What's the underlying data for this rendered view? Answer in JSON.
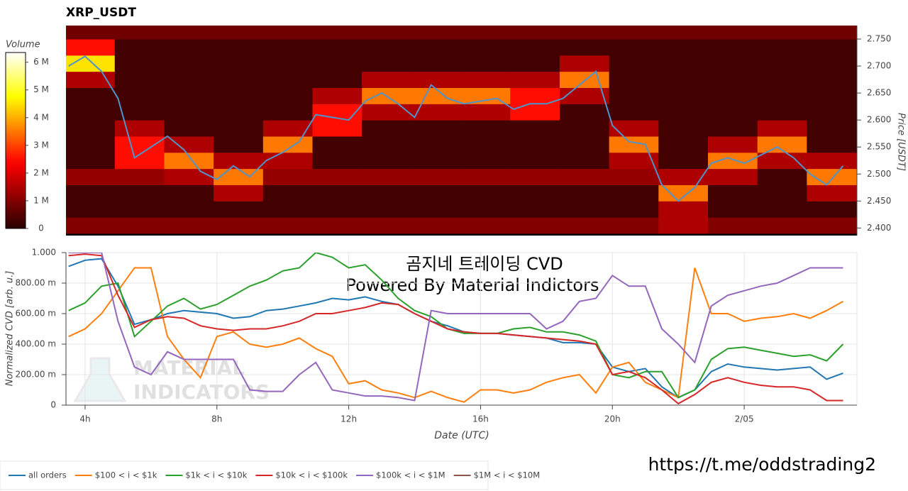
{
  "chart_data": [
    {
      "type": "heatmap",
      "title": "XRP_USDT",
      "y_label": "Price [USDT]",
      "xlim": [
        3.42,
        27.42
      ],
      "ylim": [
        2.386,
        2.775
      ],
      "yticks": [
        {
          "value": 2.4,
          "label": "2.400"
        },
        {
          "value": 2.45,
          "label": "2.450"
        },
        {
          "value": 2.5,
          "label": "2.500"
        },
        {
          "value": 2.55,
          "label": "2.550"
        },
        {
          "value": 2.6,
          "label": "2.600"
        },
        {
          "value": 2.65,
          "label": "2.650"
        },
        {
          "value": 2.7,
          "label": "2.700"
        },
        {
          "value": 2.75,
          "label": "2.750"
        }
      ],
      "colorbar": {
        "label": "Volume",
        "colormap": "hot",
        "lim": [
          0,
          6350000
        ],
        "ticks": [
          0,
          {
            "value": 1000000,
            "label": "1 M"
          },
          {
            "value": 2000000,
            "label": "2 M"
          },
          {
            "value": 3000000,
            "label": "3 M"
          },
          {
            "value": 4000000,
            "label": "4 M"
          },
          {
            "value": 5000000,
            "label": "5 M"
          },
          {
            "value": 6000000,
            "label": "6 M"
          }
        ]
      },
      "time_bins": [
        3.4,
        4.9,
        6.4,
        7.9,
        9.4,
        10.9,
        12.4,
        13.9,
        15.4,
        16.9,
        18.4,
        19.9,
        21.4,
        22.9,
        24.4,
        25.9,
        27.4
      ],
      "price_bins": [
        2.39,
        2.42,
        2.45,
        2.48,
        2.51,
        2.54,
        2.57,
        2.6,
        2.63,
        2.66,
        2.69,
        2.72,
        2.75,
        2.78
      ],
      "volumes": [
        [
          1000000,
          1000000,
          1000000,
          1000000,
          1000000,
          1000000,
          1000000,
          1000000,
          1000000,
          1000000,
          1000000,
          1000000,
          1500000,
          1000000,
          1000000,
          1000000
        ],
        [
          300000,
          300000,
          300000,
          300000,
          300000,
          300000,
          300000,
          300000,
          300000,
          300000,
          300000,
          300000,
          1500000,
          300000,
          300000,
          300000
        ],
        [
          300000,
          300000,
          300000,
          1500000,
          300000,
          300000,
          300000,
          300000,
          300000,
          300000,
          300000,
          300000,
          3500000,
          300000,
          300000,
          1500000
        ],
        [
          1200000,
          1200000,
          1500000,
          3500000,
          1200000,
          1200000,
          1200000,
          1200000,
          1200000,
          1200000,
          1200000,
          1200000,
          1500000,
          1500000,
          300000,
          3500000
        ],
        [
          300000,
          2500000,
          3500000,
          1500000,
          1500000,
          300000,
          300000,
          300000,
          300000,
          300000,
          300000,
          1500000,
          300000,
          3500000,
          1500000,
          1500000
        ],
        [
          300000,
          2500000,
          1500000,
          300000,
          3500000,
          300000,
          300000,
          300000,
          300000,
          300000,
          300000,
          3500000,
          300000,
          1500000,
          3500000,
          300000
        ],
        [
          300000,
          1500000,
          300000,
          300000,
          1500000,
          2500000,
          300000,
          300000,
          300000,
          300000,
          300000,
          1500000,
          300000,
          300000,
          1500000,
          300000
        ],
        [
          300000,
          300000,
          300000,
          300000,
          300000,
          2500000,
          1500000,
          1500000,
          1500000,
          2500000,
          300000,
          300000,
          300000,
          300000,
          300000,
          300000
        ],
        [
          300000,
          300000,
          300000,
          300000,
          300000,
          1500000,
          3500000,
          3500000,
          3500000,
          2500000,
          1500000,
          300000,
          300000,
          300000,
          300000,
          300000
        ],
        [
          1500000,
          300000,
          300000,
          300000,
          300000,
          300000,
          1500000,
          1500000,
          1500000,
          1500000,
          3500000,
          300000,
          300000,
          300000,
          300000,
          300000
        ],
        [
          4500000,
          300000,
          300000,
          300000,
          300000,
          300000,
          300000,
          300000,
          300000,
          300000,
          1500000,
          300000,
          300000,
          300000,
          300000,
          300000
        ],
        [
          2500000,
          300000,
          300000,
          300000,
          300000,
          300000,
          300000,
          300000,
          300000,
          300000,
          300000,
          300000,
          300000,
          300000,
          300000,
          300000
        ],
        [
          800000,
          800000,
          800000,
          800000,
          800000,
          800000,
          800000,
          800000,
          800000,
          800000,
          800000,
          800000,
          800000,
          800000,
          800000,
          800000
        ]
      ],
      "x": [
        3.5,
        4,
        4.5,
        5,
        5.5,
        6,
        6.5,
        7,
        7.5,
        8,
        8.5,
        9,
        9.5,
        10,
        10.5,
        11,
        11.5,
        12,
        12.5,
        13,
        13.5,
        14,
        14.5,
        15,
        15.5,
        16,
        16.5,
        17,
        17.5,
        18,
        18.5,
        19,
        19.5,
        20,
        20.5,
        21,
        21.5,
        22,
        22.5,
        23,
        23.5,
        24,
        24.5,
        25,
        25.5,
        26,
        26.5,
        27
      ],
      "series": [
        {
          "color": "#4f93c9",
          "values": [
            2.7,
            2.718,
            2.69,
            2.64,
            2.53,
            2.55,
            2.57,
            2.545,
            2.505,
            2.49,
            2.515,
            2.495,
            2.525,
            2.54,
            2.56,
            2.61,
            2.605,
            2.6,
            2.635,
            2.65,
            2.63,
            2.605,
            2.665,
            2.64,
            2.63,
            2.635,
            2.64,
            2.62,
            2.63,
            2.63,
            2.64,
            2.665,
            2.69,
            2.59,
            2.56,
            2.555,
            2.48,
            2.45,
            2.475,
            2.52,
            2.53,
            2.52,
            2.535,
            2.55,
            2.53,
            2.5,
            2.48,
            2.515
          ]
        }
      ]
    },
    {
      "type": "line",
      "xlabel": "Date (UTC)",
      "ylabel": "Normalized CVD [arb. u.]",
      "grid": true,
      "legend": "bottom-left",
      "annotations": [
        "곰지네 트레이딩 CVD",
        "Powered By Material Indictors"
      ],
      "watermark": [
        "MATERIAL",
        "INDICATORS"
      ],
      "xlim": [
        3.42,
        27.42
      ],
      "xticks": [
        {
          "value": 4,
          "label": "4h"
        },
        {
          "value": 8,
          "label": "8h"
        },
        {
          "value": 12,
          "label": "12h"
        },
        {
          "value": 16,
          "label": "16h"
        },
        {
          "value": 20,
          "label": "20h"
        },
        {
          "value": 24,
          "label": "2/05"
        }
      ],
      "ylim": [
        0,
        1
      ],
      "yticks": [
        0,
        {
          "value": 0.2,
          "label": "200.00 m"
        },
        {
          "value": 0.4,
          "label": "400.00 m"
        },
        {
          "value": 0.6,
          "label": "600.00 m"
        },
        {
          "value": 0.8,
          "label": "800.00 m"
        },
        {
          "value": 1,
          "label": "1.000"
        }
      ],
      "x": [
        3.5,
        4,
        4.5,
        5,
        5.5,
        6,
        6.5,
        7,
        7.5,
        8,
        8.5,
        9,
        9.5,
        10,
        10.5,
        11,
        11.5,
        12,
        12.5,
        13,
        13.5,
        14,
        14.5,
        15,
        15.5,
        16,
        16.5,
        17,
        17.5,
        18,
        18.5,
        19,
        19.5,
        20,
        20.5,
        21,
        21.5,
        22,
        22.5,
        23,
        23.5,
        24,
        24.5,
        25,
        25.5,
        26,
        26.5,
        27
      ],
      "series": [
        {
          "name": "all orders",
          "color": "#1f77b4",
          "values": [
            0.91,
            0.95,
            0.96,
            0.78,
            0.53,
            0.56,
            0.6,
            0.62,
            0.61,
            0.6,
            0.57,
            0.58,
            0.62,
            0.63,
            0.65,
            0.67,
            0.7,
            0.69,
            0.71,
            0.68,
            0.66,
            0.6,
            0.55,
            0.52,
            0.48,
            0.47,
            0.47,
            0.46,
            0.45,
            0.44,
            0.41,
            0.41,
            0.4,
            0.25,
            0.22,
            0.24,
            0.12,
            0.05,
            0.1,
            0.22,
            0.27,
            0.25,
            0.24,
            0.23,
            0.24,
            0.25,
            0.17,
            0.21
          ]
        },
        {
          "name": "$100 < i < $1k",
          "color": "#ff7f0e",
          "values": [
            0.45,
            0.5,
            0.6,
            0.75,
            0.9,
            0.9,
            0.45,
            0.3,
            0.18,
            0.45,
            0.48,
            0.4,
            0.38,
            0.4,
            0.44,
            0.37,
            0.32,
            0.14,
            0.16,
            0.1,
            0.08,
            0.05,
            0.09,
            0.05,
            0.02,
            0.1,
            0.1,
            0.08,
            0.1,
            0.15,
            0.18,
            0.2,
            0.08,
            0.25,
            0.28,
            0.15,
            0.1,
            0.05,
            0.9,
            0.6,
            0.6,
            0.55,
            0.57,
            0.58,
            0.6,
            0.57,
            0.62,
            0.68
          ]
        },
        {
          "name": "$1k < i < $10k",
          "color": "#2ca02c",
          "values": [
            0.62,
            0.67,
            0.78,
            0.8,
            0.45,
            0.55,
            0.65,
            0.7,
            0.63,
            0.66,
            0.72,
            0.78,
            0.82,
            0.88,
            0.9,
            1.0,
            0.97,
            0.9,
            0.92,
            0.82,
            0.7,
            0.62,
            0.58,
            0.5,
            0.47,
            0.47,
            0.47,
            0.5,
            0.51,
            0.48,
            0.48,
            0.46,
            0.42,
            0.2,
            0.18,
            0.22,
            0.22,
            0.05,
            0.1,
            0.3,
            0.37,
            0.38,
            0.36,
            0.34,
            0.32,
            0.33,
            0.29,
            0.4
          ]
        },
        {
          "name": "$10k < i < $100k",
          "color": "#d62728",
          "values": [
            0.98,
            0.99,
            0.98,
            0.72,
            0.51,
            0.56,
            0.58,
            0.57,
            0.52,
            0.5,
            0.49,
            0.5,
            0.5,
            0.52,
            0.55,
            0.6,
            0.6,
            0.62,
            0.64,
            0.67,
            0.66,
            0.6,
            0.55,
            0.5,
            0.48,
            0.47,
            0.47,
            0.46,
            0.45,
            0.44,
            0.43,
            0.42,
            0.4,
            0.2,
            0.22,
            0.18,
            0.1,
            0.01,
            0.07,
            0.15,
            0.18,
            0.15,
            0.13,
            0.12,
            0.12,
            0.1,
            0.03,
            0.03
          ]
        },
        {
          "name": "$100k < i < $1M",
          "color": "#9467bd",
          "values": [
            1.0,
            1.0,
            1.0,
            0.55,
            0.25,
            0.2,
            0.35,
            0.3,
            0.3,
            0.3,
            0.3,
            0.1,
            0.09,
            0.09,
            0.2,
            0.28,
            0.1,
            0.08,
            0.06,
            0.06,
            0.05,
            0.03,
            0.62,
            0.6,
            0.6,
            0.6,
            0.6,
            0.6,
            0.6,
            0.5,
            0.55,
            0.68,
            0.7,
            0.85,
            0.78,
            0.78,
            0.5,
            0.4,
            0.28,
            0.65,
            0.72,
            0.75,
            0.78,
            0.8,
            0.85,
            0.9,
            0.9,
            0.9
          ]
        },
        {
          "name": "$1M < i < $10M",
          "color": "#8c564b",
          "values": [
            null,
            null,
            null,
            null,
            null,
            null,
            null,
            null,
            null,
            null,
            null,
            null,
            null,
            null,
            null,
            null,
            null,
            null,
            null,
            null,
            null,
            null,
            null,
            null,
            null,
            null,
            null,
            null,
            null,
            null,
            null,
            null,
            null,
            null,
            null,
            null,
            null,
            null,
            null,
            null,
            null,
            null,
            null,
            null,
            null,
            null,
            null,
            null
          ]
        }
      ]
    }
  ],
  "footer": "https://t.me/oddstrading2"
}
